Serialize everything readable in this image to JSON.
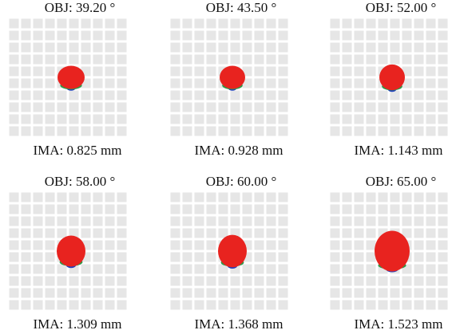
{
  "panels": [
    {
      "obj_label": "OBJ: 39.20 °",
      "ima_label": "IMA: 0.825 mm"
    },
    {
      "obj_label": "OBJ: 43.50 °",
      "ima_label": "IMA: 0.928 mm"
    },
    {
      "obj_label": "OBJ: 52.00 °",
      "ima_label": "IMA: 1.143 mm"
    },
    {
      "obj_label": "OBJ: 58.00 °",
      "ima_label": "IMA: 1.309 mm"
    },
    {
      "obj_label": "OBJ: 60.00 °",
      "ima_label": "IMA: 1.368 mm"
    },
    {
      "obj_label": "OBJ: 65.00 °",
      "ima_label": "IMA: 1.523 mm"
    }
  ]
}
